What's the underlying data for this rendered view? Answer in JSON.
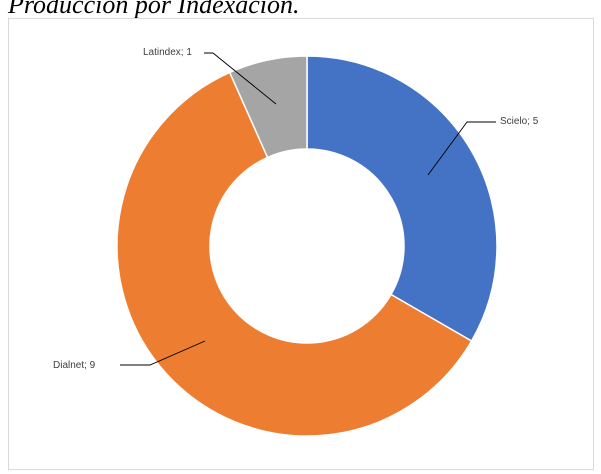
{
  "caption": "Producción por Indexación.",
  "chart_data": {
    "type": "pie",
    "variant": "doughnut",
    "title": "",
    "legend": "none",
    "start_angle_deg": 0,
    "direction": "clockwise",
    "categories": [
      "Scielo",
      "Dialnet",
      "Latindex"
    ],
    "values": [
      5,
      9,
      1
    ],
    "colors": [
      "#4472C4",
      "#ED7D31",
      "#A5A5A5"
    ],
    "data_labels": [
      "Scielo; 5",
      "Dialnet; 9",
      "Latindex; 1"
    ]
  }
}
